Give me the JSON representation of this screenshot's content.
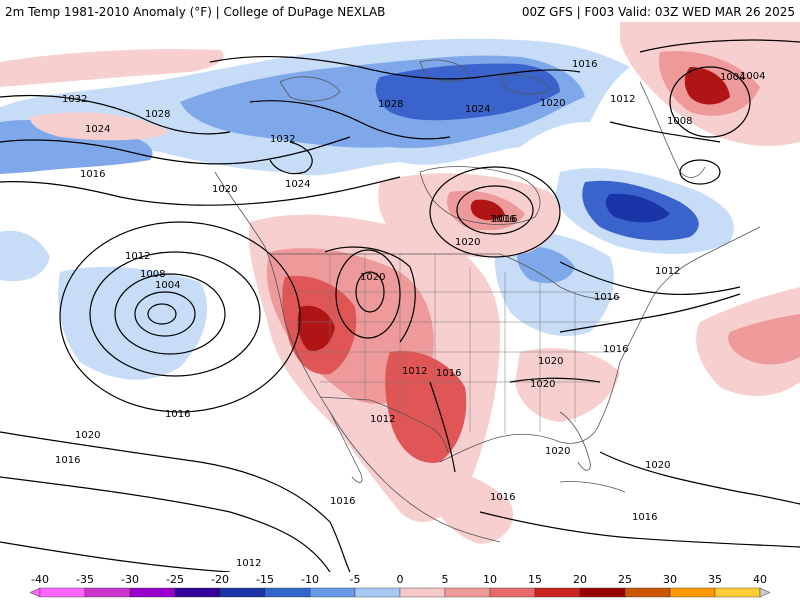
{
  "header": {
    "left_title": "2m Temp 1981-2010 Anomaly (°F) | College of DuPage NEXLAB",
    "right_title": "00Z GFS | F003 Valid: 03Z WED MAR 26 2025"
  },
  "colorbar": {
    "ticks": [
      "-40",
      "-35",
      "-30",
      "-25",
      "-20",
      "-15",
      "-10",
      "-5",
      "0",
      "5",
      "10",
      "15",
      "20",
      "25",
      "30",
      "35",
      "40"
    ],
    "colors": [
      "#ff66ff",
      "#cc33cc",
      "#9900cc",
      "#330099",
      "#1a33a6",
      "#3366cc",
      "#6699e6",
      "#a6c8f2",
      "#ffffff",
      "#f7c8c8",
      "#f09a9a",
      "#e86a6a",
      "#cc2222",
      "#990000",
      "#cc5500",
      "#ff9900",
      "#ffcc33"
    ]
  },
  "anomaly_colors": {
    "cold_light": "#c6dcf7",
    "cold_mid": "#7fa8ea",
    "cold_deep": "#3a64cc",
    "cold_core": "#1a33a6",
    "warm_light": "#f8cfcf",
    "warm_mid": "#ef9a9a",
    "warm_deep": "#e05555",
    "warm_core": "#b01515"
  },
  "isobar_labels": [
    "1032",
    "1028",
    "1024",
    "1020",
    "1016",
    "1032",
    "1028",
    "1024",
    "1016",
    "1004",
    "1020",
    "1012",
    "1024",
    "1012",
    "1008",
    "1004",
    "1016",
    "1020",
    "1020",
    "1016",
    "1012",
    "1016",
    "1020",
    "1020",
    "1016",
    "1012",
    "1016",
    "1016",
    "1020",
    "1016",
    "1016",
    "1020",
    "1016",
    "1012",
    "1020",
    "1016",
    "1008",
    "1004",
    "1012"
  ]
}
